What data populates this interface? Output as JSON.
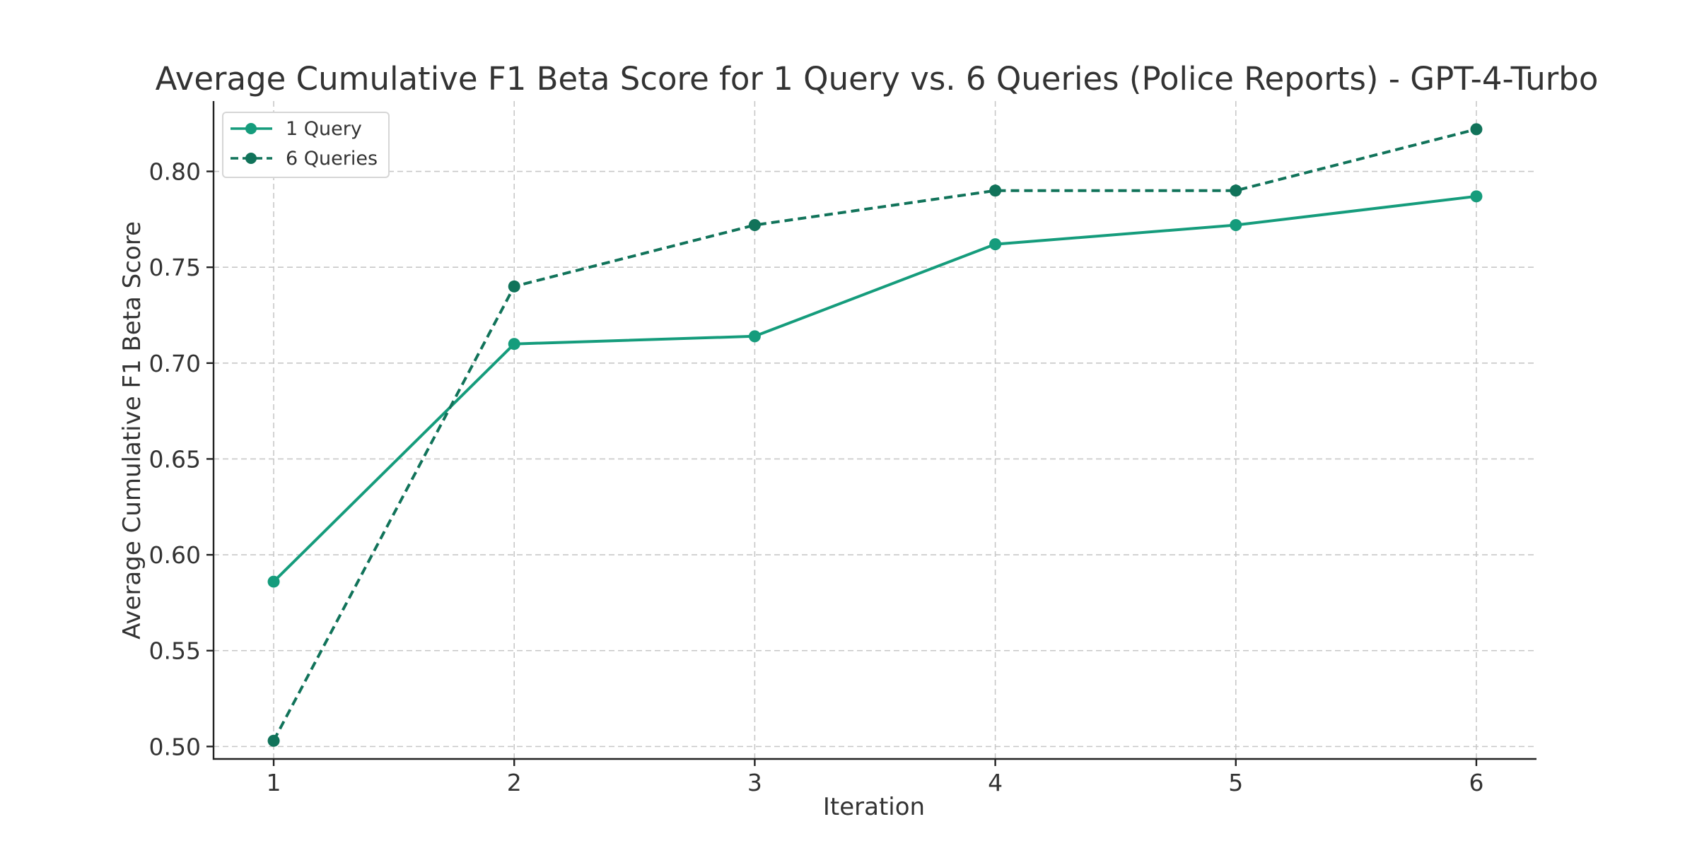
{
  "chart_data": {
    "type": "line",
    "title": "Average Cumulative F1 Beta Score for 1 Query vs. 6 Queries (Police Reports) - GPT-4-Turbo",
    "xlabel": "Iteration",
    "ylabel": "Average Cumulative F1 Beta Score",
    "x": [
      1,
      2,
      3,
      4,
      5,
      6
    ],
    "xticks": [
      "1",
      "2",
      "3",
      "4",
      "5",
      "6"
    ],
    "yticks": [
      "0.50",
      "0.55",
      "0.60",
      "0.65",
      "0.70",
      "0.75",
      "0.80"
    ],
    "xlim": [
      0.75,
      6.25
    ],
    "ylim": [
      0.4935,
      0.8367
    ],
    "grid": true,
    "legend_position": "top-left",
    "series": [
      {
        "name": "1 Query",
        "values": [
          0.586,
          0.71,
          0.714,
          0.762,
          0.772,
          0.787
        ],
        "color": "#159c7c",
        "style": "solid"
      },
      {
        "name": "6 Queries",
        "values": [
          0.503,
          0.74,
          0.772,
          0.79,
          0.79,
          0.822
        ],
        "color": "#11735a",
        "style": "dashed"
      }
    ]
  }
}
